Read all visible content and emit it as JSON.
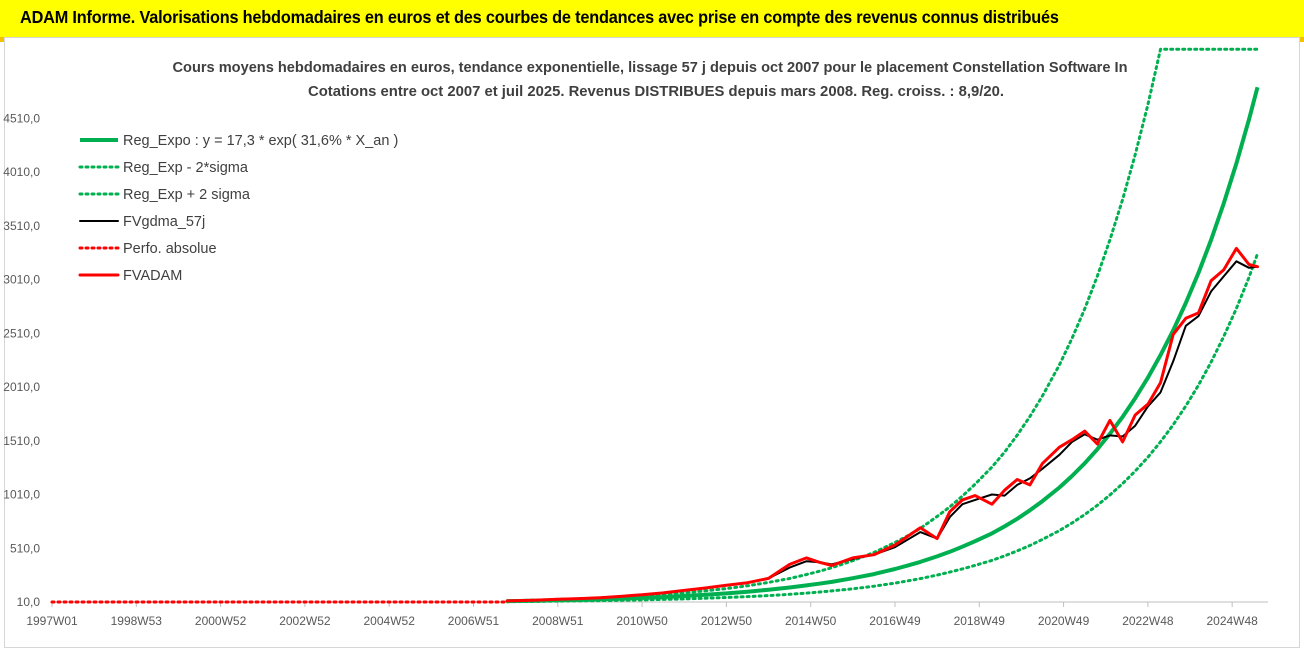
{
  "header": {
    "title": "ADAM Informe. Valorisations hebdomadaires en euros et des courbes de tendances avec prise en compte des revenus connus distribués",
    "background": "#ffff00"
  },
  "chart_data": {
    "type": "line",
    "title": "Cours moyens hebdomadaires en euros, tendance exponentielle, lissage 57 j depuis oct 2007 pour le placement Constellation Software In",
    "subtitle": "Cotations entre oct 2007 et juil 2025. Revenus DISTRIBUES depuis mars 2008. Reg. croiss. : 8,9/20.",
    "xlabel": "",
    "ylabel": "",
    "x_ticks": [
      "1997W01",
      "1998W53",
      "2000W52",
      "2002W52",
      "2004W52",
      "2006W51",
      "2008W51",
      "2010W50",
      "2012W50",
      "2014W50",
      "2016W49",
      "2018W49",
      "2020W49",
      "2022W48",
      "2024W48"
    ],
    "y_ticks": [
      "10,0",
      "510,0",
      "1010,0",
      "1510,0",
      "2010,0",
      "2510,0",
      "3010,0",
      "3510,0",
      "4010,0",
      "4510,0"
    ],
    "xlim": [
      1997.0,
      2025.85
    ],
    "ylim": [
      10,
      4960
    ],
    "grid": false,
    "legend_position": "top-left",
    "x": [
      1997.0,
      2007.8,
      2008.5,
      2009.0,
      2009.5,
      2010.0,
      2010.5,
      2011.0,
      2011.5,
      2012.0,
      2012.5,
      2013.0,
      2013.5,
      2014.0,
      2014.5,
      2014.9,
      2015.2,
      2015.5,
      2016.0,
      2016.5,
      2017.0,
      2017.3,
      2017.6,
      2018.0,
      2018.3,
      2018.6,
      2018.9,
      2019.3,
      2019.6,
      2019.9,
      2020.2,
      2020.5,
      2020.9,
      2021.2,
      2021.5,
      2021.8,
      2022.1,
      2022.4,
      2022.7,
      2023.0,
      2023.3,
      2023.6,
      2023.9,
      2024.2,
      2024.5,
      2024.8,
      2025.1,
      2025.4,
      2025.6
    ],
    "series": [
      {
        "name": "Reg_Expo : y = 17,3 * exp( 31,6% *  X_an )",
        "color": "#00b050",
        "style": "solid",
        "values": [
          null,
          17,
          22,
          26,
          30,
          35,
          41,
          48,
          56,
          66,
          77,
          90,
          106,
          124,
          145,
          164,
          180,
          197,
          231,
          270,
          317,
          349,
          383,
          434,
          477,
          525,
          576,
          648,
          713,
          784,
          863,
          949,
          1075,
          1182,
          1301,
          1431,
          1575,
          1732,
          1906,
          2097,
          2307,
          2538,
          2792,
          3072,
          3379,
          3718,
          4091,
          4500,
          4800
        ]
      },
      {
        "name": "Reg_Exp - 2*sigma",
        "color": "#00b050",
        "style": "dotted",
        "values": [
          null,
          13,
          16,
          18,
          20,
          23,
          26,
          30,
          34,
          39,
          45,
          52,
          60,
          70,
          82,
          93,
          102,
          113,
          133,
          157,
          186,
          206,
          228,
          260,
          288,
          318,
          351,
          397,
          439,
          485,
          536,
          592,
          674,
          745,
          823,
          910,
          1006,
          1112,
          1228,
          1357,
          1501,
          1659,
          1834,
          2028,
          2242,
          2479,
          2741,
          3031,
          3250
        ]
      },
      {
        "name": "Reg_Exp + 2 sigma",
        "color": "#00b050",
        "style": "dotted",
        "values": [
          null,
          21,
          28,
          34,
          40,
          47,
          56,
          67,
          80,
          95,
          114,
          135,
          161,
          192,
          229,
          266,
          296,
          329,
          394,
          471,
          564,
          625,
          695,
          806,
          895,
          995,
          1106,
          1265,
          1405,
          1562,
          1736,
          1929,
          2216,
          2463,
          2737,
          3041,
          3379,
          3755,
          4173,
          4637,
          5153,
          5153,
          5153,
          5153,
          5153,
          5153,
          5153,
          5153,
          5153
        ]
      },
      {
        "name": "FVgdma_57j",
        "color": "#000000",
        "style": "solid",
        "values": [
          null,
          20,
          28,
          35,
          42,
          50,
          62,
          78,
          95,
          118,
          140,
          165,
          190,
          230,
          330,
          390,
          380,
          360,
          410,
          450,
          520,
          590,
          660,
          600,
          800,
          920,
          960,
          1010,
          1000,
          1100,
          1160,
          1250,
          1380,
          1500,
          1570,
          1520,
          1560,
          1550,
          1650,
          1830,
          1960,
          2250,
          2580,
          2670,
          2900,
          3040,
          3180,
          3120,
          3130
        ]
      },
      {
        "name": "Perfo. absolue",
        "color": "#ff0000",
        "style": "dotted",
        "values": [
          10,
          10,
          null,
          null,
          null,
          null,
          null,
          null,
          null,
          null,
          null,
          null,
          null,
          null,
          null,
          null,
          null,
          null,
          null,
          null,
          null,
          null,
          null,
          null,
          null,
          null,
          null,
          null,
          null,
          null,
          null,
          null,
          null,
          null,
          null,
          null,
          null,
          null,
          null,
          null,
          null,
          null,
          null,
          null,
          null,
          null,
          null,
          null,
          null
        ]
      },
      {
        "name": "FVADAM",
        "color": "#ff0000",
        "style": "solid",
        "values": [
          null,
          20,
          28,
          35,
          42,
          50,
          62,
          78,
          95,
          118,
          140,
          165,
          190,
          230,
          360,
          420,
          380,
          350,
          420,
          450,
          540,
          620,
          700,
          600,
          850,
          960,
          1000,
          920,
          1050,
          1150,
          1100,
          1300,
          1450,
          1520,
          1600,
          1480,
          1700,
          1500,
          1750,
          1850,
          2050,
          2500,
          2650,
          2700,
          3000,
          3100,
          3300,
          3150,
          3130
        ]
      }
    ]
  }
}
